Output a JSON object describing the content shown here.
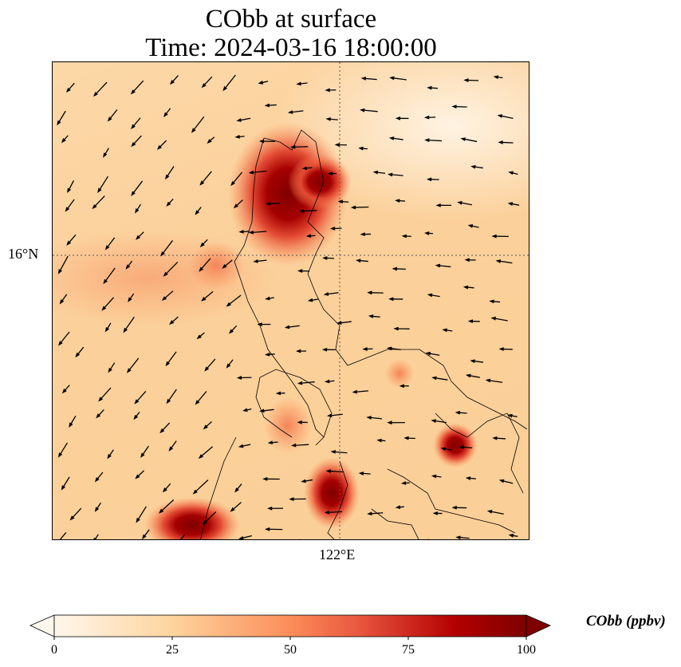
{
  "title_line1": "CObb at surface",
  "title_line2": "Time: 2024-03-16 18:00:00",
  "map": {
    "lat_label": "16°N",
    "lon_label": "122°E",
    "variable": "CObb",
    "units": "ppbv"
  },
  "colorbar": {
    "label": "CObb (ppbv)",
    "ticks": [
      "0",
      "25",
      "50",
      "75",
      "100"
    ],
    "range": [
      0,
      100
    ],
    "colormap": "OrRd",
    "colors": [
      "#fff7ec",
      "#fdd49e",
      "#fc8d59",
      "#d7301f",
      "#b30000",
      "#7f0000"
    ]
  }
}
